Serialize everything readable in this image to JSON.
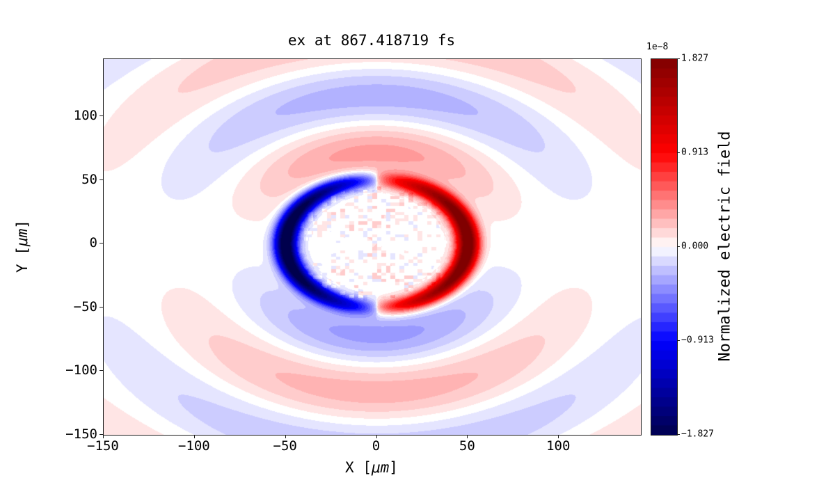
{
  "chart_data": {
    "type": "heatmap",
    "title": "ex at 867.418719 fs",
    "xlabel": {
      "prefix": "X [",
      "math": "μm",
      "suffix": "]"
    },
    "ylabel": {
      "prefix": "Y [",
      "math": "μm",
      "suffix": "]"
    },
    "x_range": [
      -150,
      145
    ],
    "y_range": [
      -150,
      145
    ],
    "x_ticks": [
      -150,
      -100,
      -50,
      0,
      50,
      100
    ],
    "x_tick_labels": [
      "−150",
      "−100",
      "−50",
      "0",
      "50",
      "100"
    ],
    "y_ticks": [
      100,
      50,
      0,
      -50,
      -100,
      -150
    ],
    "y_tick_labels": [
      "100",
      "50",
      "0",
      "−50",
      "−100",
      "−150"
    ],
    "colorbar": {
      "label": "Normalized electric field",
      "scale_text": "1e−8",
      "tick_values": [
        1.827,
        0.913,
        0.0,
        -0.913,
        -1.827
      ],
      "tick_labels": [
        "1.827",
        "0.913",
        "0.000",
        "−0.913",
        "−1.827"
      ],
      "vmin": -1.827e-08,
      "vmax": 1.827e-08,
      "n_levels": 40,
      "colormap": "seismic",
      "colormap_stops": [
        [
          0,
          [
            0,
            0,
            77
          ]
        ],
        [
          0.25,
          [
            0,
            0,
            255
          ]
        ],
        [
          0.5,
          [
            255,
            255,
            255
          ]
        ],
        [
          0.75,
          [
            255,
            0,
            0
          ]
        ],
        [
          1,
          [
            128,
            0,
            0
          ]
        ]
      ]
    },
    "field_model": {
      "description": "dipole-like radiated ex field: strong negative (blue) crescent on left and positive (red) crescent on right at r≈50 μm, surrounded by alternating faint wavefront bands (red above / blue below for first ring, reversing each half wavelength), faint speckle noise inside the central cavity",
      "crescent_radius": 50,
      "crescent_width": 4.5,
      "crescent_amplitude": 1.15,
      "crescent_angular_power": 0.55,
      "ring_half_period": 45,
      "ring_amplitude": 0.22,
      "ring_decay": 180,
      "ring_angular_power": 1.5,
      "noise_radius": 45,
      "noise_amplitude": 0.09,
      "noise_bias": 0.02,
      "noise_cell": 2.5,
      "noise_fill": 0.5
    }
  }
}
